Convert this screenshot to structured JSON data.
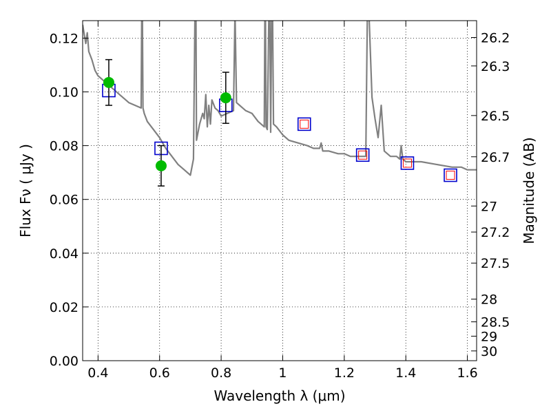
{
  "chart_data": {
    "type": "scatter",
    "xlabel": "Wavelength  λ (μm)",
    "ylabel": "Flux  Fν  ( μJy )",
    "ylabel_right": "Magnitude (AB)",
    "xlim": [
      0.35,
      1.63
    ],
    "ylim": [
      0.0,
      0.1265
    ],
    "grid": true,
    "x_ticks": [
      {
        "v": 0.4,
        "label": "0.4"
      },
      {
        "v": 0.6,
        "label": "0.6"
      },
      {
        "v": 0.8,
        "label": "0.8"
      },
      {
        "v": 1.0,
        "label": "1"
      },
      {
        "v": 1.2,
        "label": "1.2"
      },
      {
        "v": 1.4,
        "label": "1.4"
      },
      {
        "v": 1.6,
        "label": "1.6"
      }
    ],
    "y_ticks": [
      {
        "v": 0.0,
        "label": "0.00"
      },
      {
        "v": 0.02,
        "label": "0.02"
      },
      {
        "v": 0.04,
        "label": "0.04"
      },
      {
        "v": 0.06,
        "label": "0.06"
      },
      {
        "v": 0.08,
        "label": "0.08"
      },
      {
        "v": 0.1,
        "label": "0.10"
      },
      {
        "v": 0.12,
        "label": "0.12"
      }
    ],
    "mag_ticks": [
      {
        "mag": 26.2,
        "label": "26.2"
      },
      {
        "mag": 26.3,
        "label": "26.3"
      },
      {
        "mag": 26.5,
        "label": "26.5"
      },
      {
        "mag": 26.7,
        "label": "26.7"
      },
      {
        "mag": 27.0,
        "label": "27"
      },
      {
        "mag": 27.2,
        "label": "27.2"
      },
      {
        "mag": 27.5,
        "label": "27.5"
      },
      {
        "mag": 28.0,
        "label": "28"
      },
      {
        "mag": 28.5,
        "label": "28.5"
      },
      {
        "mag": 29.0,
        "label": "29"
      },
      {
        "mag": 30.0,
        "label": "30"
      }
    ],
    "series": [
      {
        "kind": "line",
        "color": "#808080",
        "x": [
          0.35,
          0.36,
          0.365,
          0.37,
          0.38,
          0.39,
          0.4,
          0.41,
          0.42,
          0.43,
          0.45,
          0.47,
          0.49,
          0.5,
          0.52,
          0.54,
          0.542,
          0.544,
          0.546,
          0.548,
          0.55,
          0.56,
          0.58,
          0.6,
          0.62,
          0.64,
          0.66,
          0.68,
          0.7,
          0.71,
          0.715,
          0.718,
          0.72,
          0.73,
          0.74,
          0.745,
          0.75,
          0.755,
          0.76,
          0.765,
          0.77,
          0.78,
          0.79,
          0.8,
          0.82,
          0.84,
          0.845,
          0.85,
          0.86,
          0.87,
          0.88,
          0.9,
          0.92,
          0.94,
          0.942,
          0.944,
          0.946,
          0.95,
          0.955,
          0.958,
          0.961,
          0.964,
          0.967,
          0.97,
          0.98,
          1.0,
          1.02,
          1.05,
          1.08,
          1.1,
          1.12,
          1.125,
          1.13,
          1.15,
          1.18,
          1.2,
          1.22,
          1.25,
          1.27,
          1.275,
          1.28,
          1.29,
          1.3,
          1.31,
          1.32,
          1.33,
          1.34,
          1.35,
          1.37,
          1.38,
          1.385,
          1.39,
          1.4,
          1.42,
          1.45,
          1.5,
          1.55,
          1.58,
          1.6,
          1.63
        ],
        "y": [
          0.125,
          0.118,
          0.122,
          0.115,
          0.112,
          0.108,
          0.106,
          0.105,
          0.104,
          0.103,
          0.101,
          0.099,
          0.097,
          0.096,
          0.095,
          0.094,
          0.13,
          0.13,
          0.094,
          0.093,
          0.092,
          0.089,
          0.086,
          0.083,
          0.079,
          0.076,
          0.073,
          0.071,
          0.069,
          0.075,
          0.13,
          0.13,
          0.082,
          0.088,
          0.092,
          0.09,
          0.099,
          0.087,
          0.095,
          0.088,
          0.097,
          0.094,
          0.093,
          0.091,
          0.092,
          0.093,
          0.13,
          0.096,
          0.095,
          0.094,
          0.093,
          0.092,
          0.089,
          0.087,
          0.13,
          0.13,
          0.087,
          0.086,
          0.13,
          0.13,
          0.085,
          0.13,
          0.13,
          0.088,
          0.087,
          0.084,
          0.082,
          0.081,
          0.08,
          0.079,
          0.079,
          0.081,
          0.078,
          0.078,
          0.077,
          0.077,
          0.076,
          0.076,
          0.076,
          0.13,
          0.13,
          0.098,
          0.09,
          0.083,
          0.095,
          0.078,
          0.077,
          0.076,
          0.076,
          0.075,
          0.08,
          0.075,
          0.074,
          0.074,
          0.074,
          0.073,
          0.072,
          0.072,
          0.071,
          0.071
        ]
      },
      {
        "kind": "open-squares",
        "color": "#0000cc",
        "name": "",
        "x": [
          0.435,
          0.605,
          0.815,
          1.07,
          1.26,
          1.405,
          1.545
        ],
        "y": [
          0.1005,
          0.079,
          0.095,
          0.088,
          0.0765,
          0.0735,
          0.069
        ]
      },
      {
        "kind": "open-squares-small",
        "color": "#ff0000",
        "name": "",
        "x": [
          1.07,
          1.26,
          1.405,
          1.545
        ],
        "y": [
          0.088,
          0.0765,
          0.0735,
          0.069
        ]
      },
      {
        "kind": "filled-circles",
        "color": "#00bb00",
        "name": "",
        "x": [
          0.435,
          0.605,
          0.815
        ],
        "y": [
          0.1035,
          0.0725,
          0.0978
        ],
        "err_low": [
          0.0085,
          0.0075,
          0.0095
        ],
        "err_high": [
          0.0085,
          0.0075,
          0.0095
        ]
      }
    ]
  }
}
